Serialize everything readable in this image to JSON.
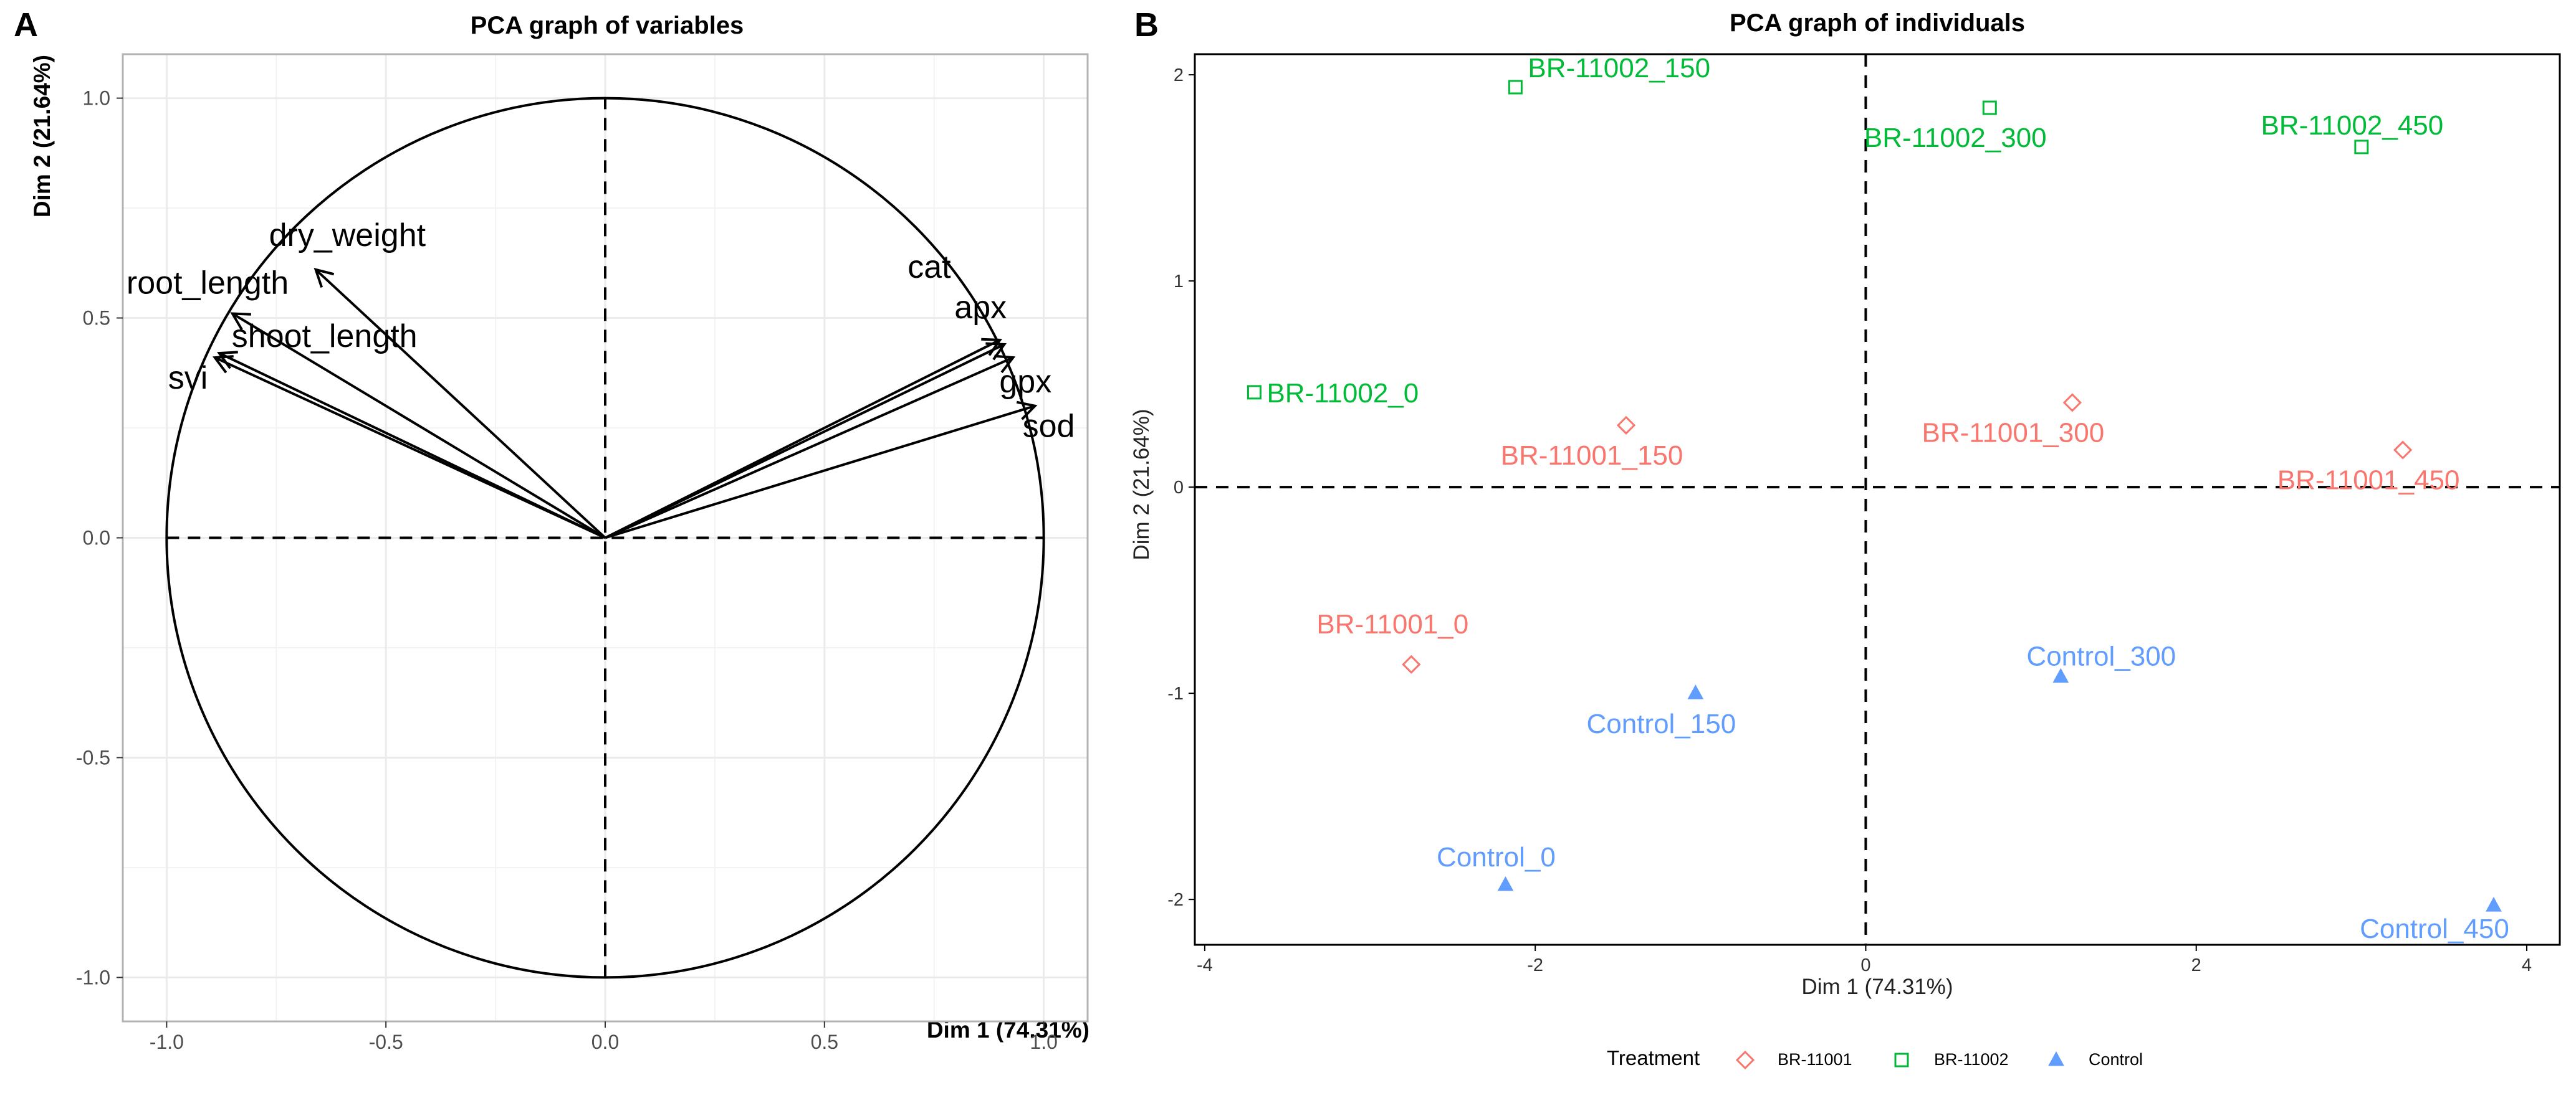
{
  "figure": {
    "panel_a_letter": "A",
    "panel_b_letter": "B"
  },
  "colors": {
    "BR-11001": "#F8766D",
    "BR-11002": "#00BA38",
    "Control": "#619CFF",
    "arrow": "#000000",
    "grid": "#EBEBEB",
    "frame": "#B3B3B3"
  },
  "chart_data": [
    {
      "type": "scatter",
      "subtype": "pca-variables-correlation-circle",
      "title": "PCA graph of variables",
      "xlabel": "Dim 1 (74.31%)",
      "ylabel": "Dim 2 (21.64%)",
      "xlim": [
        -1.1,
        1.1
      ],
      "ylim": [
        -1.1,
        1.1
      ],
      "xticks": [
        -1.0,
        -0.5,
        0.0,
        0.5,
        1.0
      ],
      "xtick_labels": [
        "-1.0",
        "-0.5",
        "0.0",
        "0.5",
        "1.0"
      ],
      "yticks": [
        -1.0,
        -0.5,
        0.0,
        0.5,
        1.0
      ],
      "ytick_labels": [
        "-1.0",
        "-0.5",
        "0.0",
        "0.5",
        "1.0"
      ],
      "grid": true,
      "unit_circle": true,
      "zero_lines": "dashed",
      "variables": [
        {
          "name": "dry_weight",
          "x": -0.66,
          "y": 0.61
        },
        {
          "name": "root_length",
          "x": -0.85,
          "y": 0.51
        },
        {
          "name": "shoot_length",
          "x": -0.88,
          "y": 0.42
        },
        {
          "name": "svi",
          "x": -0.89,
          "y": 0.41
        },
        {
          "name": "cat",
          "x": 0.9,
          "y": 0.45
        },
        {
          "name": "apx",
          "x": 0.91,
          "y": 0.44
        },
        {
          "name": "gpx",
          "x": 0.93,
          "y": 0.41
        },
        {
          "name": "sod",
          "x": 0.98,
          "y": 0.3
        }
      ]
    },
    {
      "type": "scatter",
      "subtype": "pca-individuals",
      "title": "PCA graph of individuals",
      "xlabel": "Dim 1 (74.31%)",
      "ylabel": "Dim 2 (21.64%)",
      "xlim": [
        -4.06,
        4.2
      ],
      "ylim": [
        -2.22,
        2.1
      ],
      "xticks": [
        -4,
        -2,
        0,
        2,
        4
      ],
      "xtick_labels": [
        "-4",
        "-2",
        "0",
        "2",
        "4"
      ],
      "yticks": [
        -2,
        -1,
        0,
        1,
        2
      ],
      "ytick_labels": [
        "-2",
        "-1",
        "0",
        "1",
        "2"
      ],
      "grid": false,
      "zero_lines": "dashed",
      "legend_position": "bottom",
      "legend": {
        "title": "Treatment",
        "entries": [
          "BR-11001",
          "BR-11002",
          "Control"
        ]
      },
      "series": [
        {
          "name": "BR-11001",
          "marker": "diamond",
          "points": [
            {
              "label": "BR-11001_0",
              "x": -2.75,
              "y": -0.86
            },
            {
              "label": "BR-11001_150",
              "x": -1.45,
              "y": 0.3
            },
            {
              "label": "BR-11001_300",
              "x": 1.25,
              "y": 0.41
            },
            {
              "label": "BR-11001_450",
              "x": 3.25,
              "y": 0.18
            }
          ]
        },
        {
          "name": "BR-11002",
          "marker": "square",
          "points": [
            {
              "label": "BR-11002_0",
              "x": -3.7,
              "y": 0.46
            },
            {
              "label": "BR-11002_150",
              "x": -2.12,
              "y": 1.94
            },
            {
              "label": "BR-11002_300",
              "x": 0.75,
              "y": 1.84
            },
            {
              "label": "BR-11002_450",
              "x": 3.0,
              "y": 1.65
            }
          ]
        },
        {
          "name": "Control",
          "marker": "triangle",
          "points": [
            {
              "label": "Control_0",
              "x": -2.18,
              "y": -1.93
            },
            {
              "label": "Control_150",
              "x": -1.03,
              "y": -1.0
            },
            {
              "label": "Control_300",
              "x": 1.18,
              "y": -0.92
            },
            {
              "label": "Control_450",
              "x": 3.8,
              "y": -2.03
            }
          ]
        }
      ]
    }
  ]
}
